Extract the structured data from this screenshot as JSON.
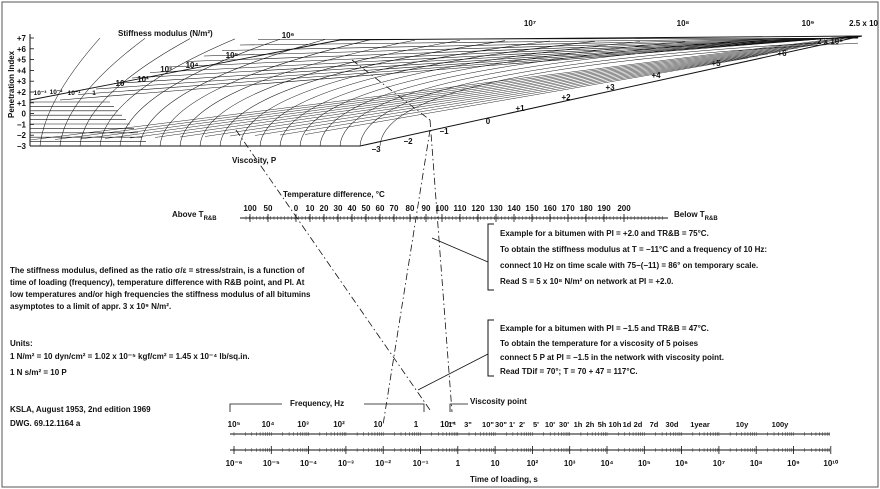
{
  "nomograph": {
    "stiffness_label": "Stiffness modulus (N/m²)",
    "pi_axis_label": "Penetration Index",
    "pi_ticks": [
      "+7",
      "+6",
      "+5",
      "+4",
      "+3",
      "+2",
      "+1",
      "0",
      "−1",
      "−2",
      "−3"
    ],
    "stiffness_ticks": [
      "10⁻³",
      "10⁻²",
      "10⁻¹",
      "1",
      "10",
      "10²",
      "10³",
      "10⁴",
      "10⁵",
      "10⁶",
      "10⁷",
      "10⁸",
      "10⁹",
      "2 x 10⁹",
      "2.5 x 10"
    ],
    "viscosity_label": "Viscosity, P",
    "grid_pi_labels": [
      "−3",
      "−2",
      "−1",
      "0",
      "+1",
      "+2",
      "+3",
      "+4",
      "+5",
      "+6"
    ]
  },
  "temperature_scale": {
    "title": "Temperature difference, °C",
    "above_label": "Above T",
    "below_label": "Below T",
    "rb_sub": "R&B",
    "ticks": [
      "100",
      "50",
      "0",
      "10",
      "20",
      "30",
      "40",
      "50",
      "60",
      "70",
      "80",
      "90",
      "100",
      "110",
      "120",
      "130",
      "140",
      "150",
      "160",
      "170",
      "180",
      "190",
      "200"
    ]
  },
  "examples": [
    {
      "lines": [
        "Example for a bitumen with PI = +2.0 and TR&B = 75°C.",
        "To obtain the stiffness modulus at T = −11°C and a frequency of 10 Hz:",
        "connect 10 Hz on time scale with 75−(−11) = 86° on temporary scale.",
        "Read S = 5 x 10⁸ N/m² on network at PI = +2.0."
      ]
    },
    {
      "lines": [
        "Example for a bitumen with PI = −1.5 and TR&B = 47°C.",
        "To obtain the temperature for a viscosity of 5 poises",
        "connect 5 P at PI = −1.5 in the network with viscosity point.",
        "Read TDif = 70°; T = 70 + 47 = 117°C."
      ]
    }
  ],
  "description": {
    "lines": [
      "The stiffness modulus, defined as the ratio σ/ε = stress/strain, is a function of",
      "time of loading (frequency), temperature difference with R&B point, and PI. At",
      "low temperatures and/or high frequencies the stiffness modulus of all bitumins",
      "asymptotes to a limit of appr. 3 x 10⁹ N/m²."
    ]
  },
  "units": {
    "title": "Units:",
    "lines": [
      "1 N/m² = 10 dyn/cm² = 1.02 x 10⁻⁵ kgf/cm² = 1.45 x 10⁻⁴ lb/sq.in.",
      "1 N s/m² = 10 P"
    ]
  },
  "credit": {
    "lines": [
      "KSLA, August 1953, 2nd edition 1969",
      "DWG.  69.12.1164 a"
    ]
  },
  "frequency_scale": {
    "title": "Frequency, Hz",
    "ticks": [
      "10⁵",
      "10⁴",
      "10³",
      "10²",
      "10",
      "1",
      "10⁻¹"
    ]
  },
  "viscosity_point_label": "Viscosity point",
  "duration_ticks": [
    "1\"",
    "3\"",
    "10\"",
    "30\"",
    "1'",
    "2'",
    "5'",
    "10'",
    "30'",
    "1h",
    "2h",
    "5h",
    "10h",
    "1d",
    "2d",
    "7d",
    "30d",
    "1year",
    "10y",
    "100y"
  ],
  "time_scale": {
    "title": "Time of loading, s",
    "ticks": [
      "10⁻⁶",
      "10⁻⁵",
      "10⁻⁴",
      "10⁻³",
      "10⁻²",
      "10⁻¹",
      "1",
      "10",
      "10²",
      "10³",
      "10⁴",
      "10⁵",
      "10⁶",
      "10⁷",
      "10⁸",
      "10⁹",
      "10¹⁰"
    ]
  },
  "colors": {
    "ink": "#111111",
    "paper": "#ffffff",
    "frame": "#555555"
  }
}
